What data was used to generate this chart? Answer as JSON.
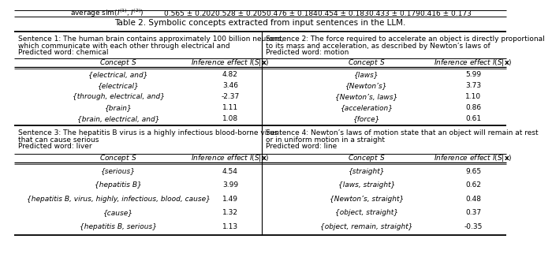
{
  "top_label": "average sim($I^{(1)}, I^{(2)}$)",
  "top_values": [
    "0.565 ± 0.202",
    "0.528 ± 0.205",
    "0.476 ± 0.184",
    "0.454 ± 0.183",
    "0.433 ± 0.179",
    "0.416 ± 0.173"
  ],
  "title": "Table 2. Symbolic concepts extracted from input sentences in the LLM.",
  "sent1_line1": "Sentence 1: The human brain contains approximately 100 billion neurons,",
  "sent1_line2": "which communicate with each other through electrical and",
  "sent1_line3": "Predicted word: chemical",
  "sent2_line1": "Sentence 2: The force required to accelerate an object is directly proportional",
  "sent2_line2": "to its mass and acceleration, as described by Newton’s laws of",
  "sent2_line3": "Predicted word: motion",
  "sent3_line1": "Sentence 3: The hepatitis B virus is a highly infectious blood-borne virus",
  "sent3_line2": "that can cause serious",
  "sent3_line3": "Predicted word: liver",
  "sent4_line1": "Sentence 4: Newton’s laws of motion state that an object will remain at rest",
  "sent4_line2": "or in uniform motion in a straight",
  "sent4_line3": "Predicted word: line",
  "col1_header": "Concept $S$",
  "col2_header": "Inference effect $I(S|\\mathbf{x})$",
  "sent1_concepts": [
    "{\\textit{electrical, and}}",
    "{\\textit{electrical}}",
    "{\\textit{through, electrical, and}}",
    "{\\textit{brain}}",
    "{\\textit{brain, electrical, and}}"
  ],
  "sent1_values": [
    "4.82",
    "3.46",
    "-2.37",
    "1.11",
    "1.08"
  ],
  "sent2_concepts": [
    "{\\textit{laws}}",
    "{\\textit{Newton’s}}",
    "{\\textit{Newton’s, laws}}",
    "{\\textit{acceleration}}",
    "{\\textit{force}}"
  ],
  "sent2_values": [
    "5.99",
    "3.73",
    "1.10",
    "0.86",
    "0.61"
  ],
  "sent3_concepts": [
    "{\\textit{serious}}",
    "{\\textit{hepatitis B}}",
    "{\\textit{hepatitis B, virus, highly, infectious, blood, cause}}",
    "{\\textit{cause}}",
    "{\\textit{hepatitis B, serious}}"
  ],
  "sent3_values": [
    "4.54",
    "3.99",
    "1.49",
    "1.32",
    "1.13"
  ],
  "sent4_concepts": [
    "{\\textit{straight}}",
    "{\\textit{laws, straight}}",
    "{\\textit{Newton’s, straight}}",
    "{\\textit{object, straight}}",
    "{\\textit{object, remain, straight}}"
  ],
  "sent4_values": [
    "9.65",
    "0.62",
    "0.48",
    "0.37",
    "-0.35"
  ],
  "sent1_concepts_plain": [
    "{electrical, and}",
    "{electrical}",
    "{through, electrical, and}",
    "{brain}",
    "{brain, electrical, and}"
  ],
  "sent2_concepts_plain": [
    "{laws}",
    "{Newton’s}",
    "{Newton’s, laws}",
    "{acceleration}",
    "{force}"
  ],
  "sent3_concepts_plain": [
    "{serious}",
    "{hepatitis B}",
    "{hepatitis B, virus, highly, infectious, blood, cause}",
    "{cause}",
    "{hepatitis B, serious}"
  ],
  "sent4_concepts_plain": [
    "{straight}",
    "{laws, straight}",
    "{Newton’s, straight}",
    "{object, straight}",
    "{object, remain, straight}"
  ]
}
